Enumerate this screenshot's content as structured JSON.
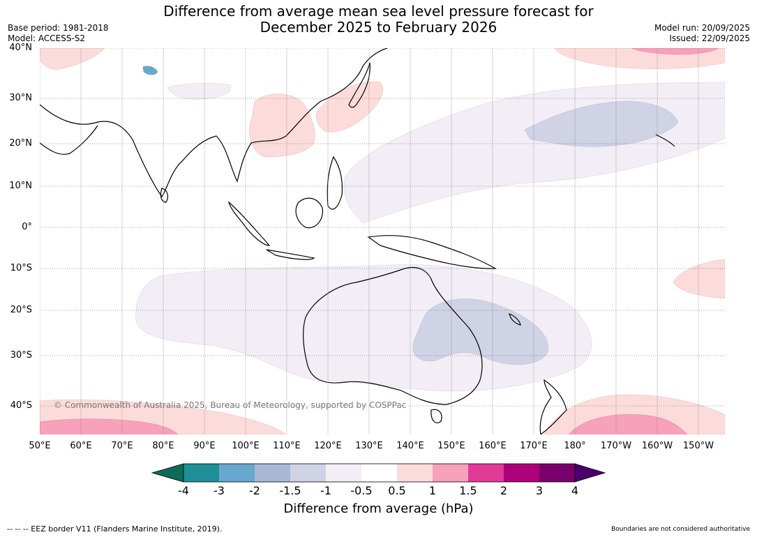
{
  "header": {
    "title_line1": "Difference from average mean sea level pressure forecast for",
    "title_line2": "December 2025 to February 2026",
    "base_period": "Base period: 1981-2018",
    "model": "Model: ACCESS-S2",
    "model_run": "Model run: 20/09/2025",
    "issued": "Issued: 22/09/2025"
  },
  "map": {
    "latitude_labels": [
      "40°N",
      "30°N",
      "20°N",
      "10°N",
      "0°",
      "10°S",
      "20°S",
      "30°S",
      "40°S"
    ],
    "longitude_labels": [
      "50°E",
      "60°E",
      "70°E",
      "80°E",
      "90°E",
      "100°E",
      "110°E",
      "120°E",
      "130°E",
      "140°E",
      "150°E",
      "160°E",
      "170°E",
      "180°",
      "170°W",
      "160°W",
      "150°W"
    ],
    "copyright": "© Commonwealth of Australia 2025, Bureau of Meteorology, supported by COSPPac"
  },
  "legend": {
    "title": "Difference from average (hPa)",
    "ticks": [
      "-4",
      "-3",
      "-2",
      "-1.5",
      "-1",
      "-0.5",
      "0.5",
      "1",
      "1.5",
      "2",
      "3",
      "4"
    ],
    "colors": [
      "#0d6b5a",
      "#1e8f96",
      "#68a8cf",
      "#a8b8d4",
      "#d0d2e6",
      "#f3edf5",
      "#ffffff",
      "#fcdcdb",
      "#f7a1ba",
      "#df3b97",
      "#ad0079",
      "#7a006e",
      "#4a006b"
    ]
  },
  "footer": {
    "eez_note": "--  --  -- EEZ border V11 (Flanders Marine Institute, 2019).",
    "disclaimer": "Boundaries are not considered authoritative"
  }
}
